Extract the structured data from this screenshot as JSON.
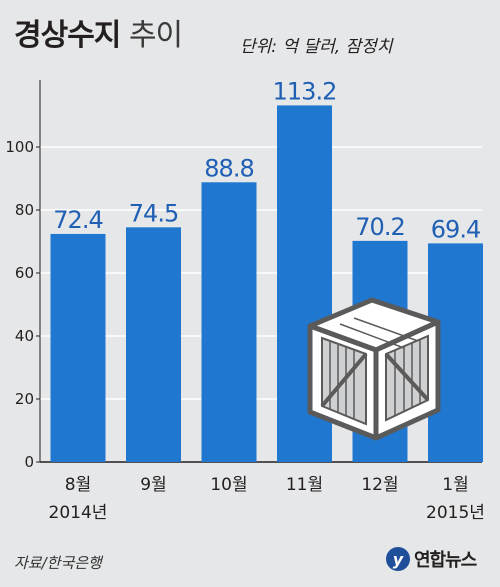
{
  "title_bold": "경상수지",
  "title_light": "추이",
  "unit_note": "단위: 억 달러, 잠정치",
  "source": "자료/한국은행",
  "logo": {
    "mark": "y",
    "text": "연합뉴스"
  },
  "colors": {
    "bar": "#1f77d0",
    "label": "#1f5fb4",
    "grid": "#ffffff",
    "background": "#e6e7e8"
  },
  "illustration_icon": "wooden-crate-icon",
  "chart_data": {
    "type": "bar",
    "title": "경상수지 추이",
    "categories": [
      {
        "month": "8월",
        "year": "2014년"
      },
      {
        "month": "9월",
        "year": ""
      },
      {
        "month": "10월",
        "year": ""
      },
      {
        "month": "11월",
        "year": ""
      },
      {
        "month": "12월",
        "year": ""
      },
      {
        "month": "1월",
        "year": "2015년"
      }
    ],
    "values": [
      72.4,
      74.5,
      88.8,
      113.2,
      70.2,
      69.4
    ],
    "value_labels": [
      "72.4",
      "74.5",
      "88.8",
      "113.2",
      "70.2",
      "69.4"
    ],
    "ylim": [
      0,
      120
    ],
    "yticks": [
      0,
      20,
      40,
      60,
      80,
      100
    ],
    "ytick_labels": [
      "0",
      "20",
      "40",
      "60",
      "80",
      "100"
    ],
    "grid": true
  }
}
